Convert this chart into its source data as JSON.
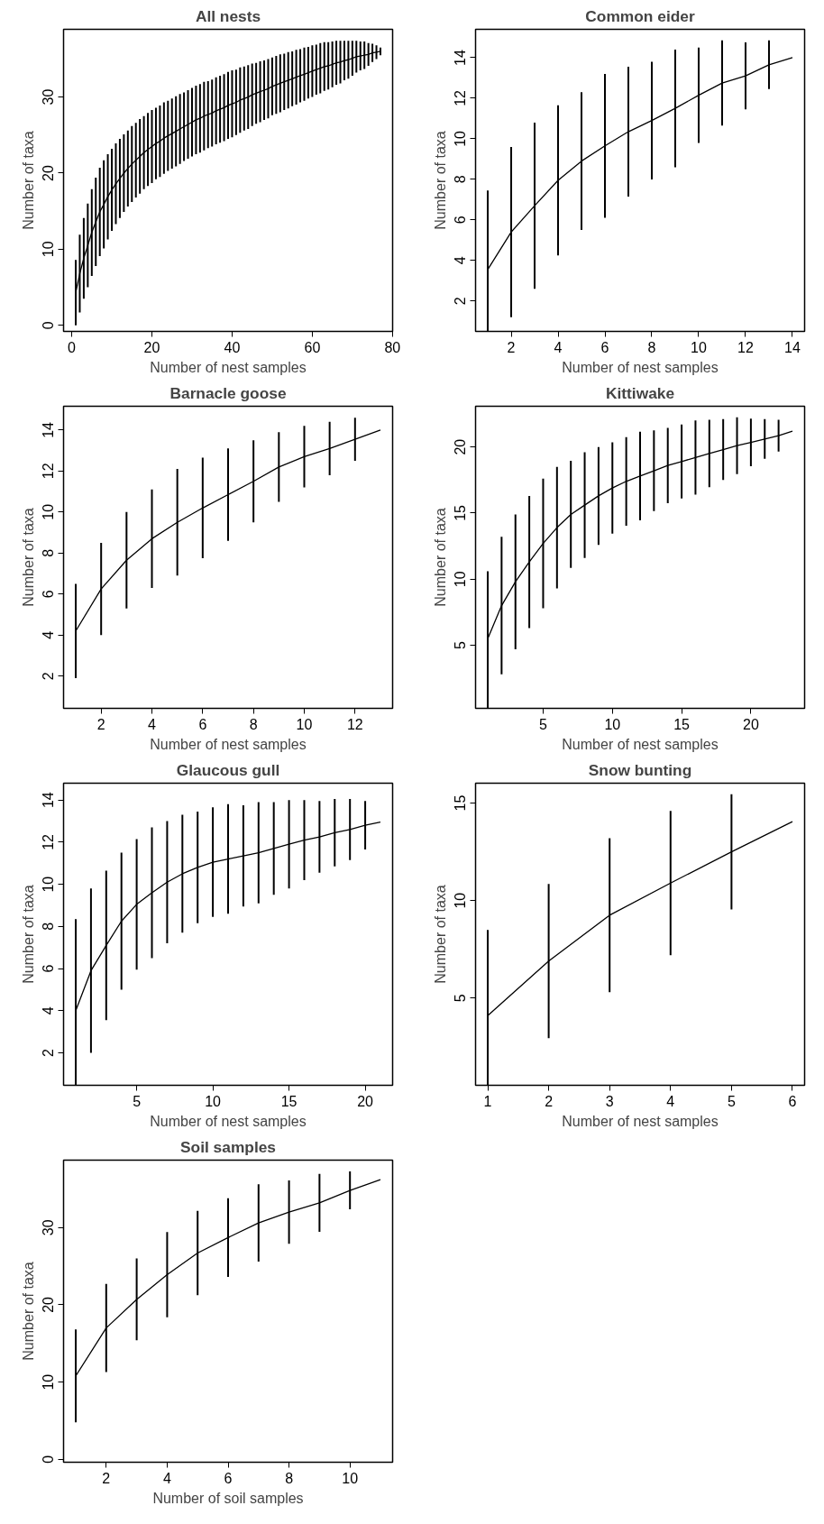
{
  "chart_data": [
    {
      "type": "line",
      "title": "All nests",
      "xlabel": "Number of nest samples",
      "ylabel": "Number of taxa",
      "xlim": [
        -2.04,
        80.04
      ],
      "ylim": [
        -0.8,
        38.9
      ],
      "xticks": [
        0,
        20,
        40,
        60,
        80
      ],
      "yticks": [
        0,
        10,
        20,
        30
      ],
      "grid": false,
      "marker": "none",
      "line_style": "solid",
      "x": [
        1,
        2,
        3,
        4,
        5,
        6,
        7,
        8,
        9,
        10,
        11,
        12,
        13,
        14,
        15,
        16,
        17,
        18,
        19,
        20,
        21,
        22,
        23,
        24,
        25,
        26,
        27,
        28,
        29,
        30,
        31,
        32,
        33,
        34,
        35,
        36,
        37,
        38,
        39,
        40,
        41,
        42,
        43,
        44,
        45,
        46,
        47,
        48,
        49,
        50,
        51,
        52,
        53,
        54,
        55,
        56,
        57,
        58,
        59,
        60,
        61,
        62,
        63,
        64,
        65,
        66,
        67,
        68,
        69,
        70,
        71,
        72,
        73,
        74,
        75,
        76,
        77
      ],
      "series": [
        {
          "color": "#000000",
          "values": [
            4.3,
            6.8,
            8.8,
            10.5,
            12.2,
            13.6,
            14.9,
            15.9,
            16.9,
            17.8,
            18.6,
            19.3,
            20.0,
            20.6,
            21.2,
            21.7,
            22.2,
            22.7,
            23.1,
            23.5,
            23.9,
            24.2,
            24.6,
            24.9,
            25.2,
            25.5,
            25.8,
            26.1,
            26.4,
            26.7,
            27.0,
            27.2,
            27.5,
            27.7,
            27.9,
            28.2,
            28.4,
            28.6,
            28.9,
            29.1,
            29.3,
            29.6,
            29.8,
            30.0,
            30.3,
            30.5,
            30.7,
            30.9,
            31.1,
            31.4,
            31.6,
            31.8,
            32.0,
            32.2,
            32.4,
            32.6,
            32.8,
            33.0,
            33.2,
            33.4,
            33.6,
            33.8,
            34.0,
            34.1,
            34.3,
            34.5,
            34.6,
            34.8,
            34.9,
            35.1,
            35.3,
            35.4,
            35.5,
            35.6,
            35.8,
            35.9,
            36.0
          ],
          "errors": [
            4.3,
            5.1,
            5.3,
            5.5,
            5.7,
            5.8,
            5.8,
            5.8,
            5.6,
            5.4,
            5.3,
            5.2,
            5.1,
            5.0,
            5.0,
            4.9,
            4.9,
            4.8,
            4.8,
            4.8,
            4.7,
            4.7,
            4.7,
            4.6,
            4.6,
            4.6,
            4.6,
            4.5,
            4.5,
            4.5,
            4.5,
            4.5,
            4.5,
            4.4,
            4.4,
            4.4,
            4.4,
            4.4,
            4.4,
            4.4,
            4.3,
            4.3,
            4.2,
            4.2,
            4.1,
            4.0,
            4.0,
            3.9,
            3.9,
            3.8,
            3.8,
            3.8,
            3.7,
            3.7,
            3.6,
            3.6,
            3.5,
            3.5,
            3.4,
            3.4,
            3.3,
            3.3,
            3.2,
            3.1,
            3.0,
            2.9,
            2.8,
            2.6,
            2.5,
            2.3,
            2.1,
            1.9,
            1.8,
            1.5,
            1.2,
            0.9,
            0.5
          ]
        }
      ]
    },
    {
      "type": "line",
      "title": "Common eider",
      "xlabel": "Number of nest samples",
      "ylabel": "Number of taxa",
      "xlim": [
        0.48,
        14.52
      ],
      "ylim": [
        0.5,
        15.4
      ],
      "xticks": [
        2,
        4,
        6,
        8,
        10,
        12,
        14
      ],
      "yticks": [
        2,
        4,
        6,
        8,
        10,
        12,
        14
      ],
      "grid": false,
      "marker": "none",
      "line_style": "solid",
      "x": [
        1,
        2,
        3,
        4,
        5,
        6,
        7,
        8,
        9,
        10,
        11,
        12,
        13,
        14
      ],
      "series": [
        {
          "color": "#000000",
          "values": [
            3.55,
            5.4,
            6.7,
            7.95,
            8.9,
            9.65,
            10.35,
            10.9,
            11.5,
            12.15,
            12.75,
            13.1,
            13.65,
            14.0
          ],
          "errors": [
            [
              0.5,
              7.45
            ],
            4.2,
            4.1,
            3.7,
            3.4,
            3.55,
            3.2,
            2.9,
            2.9,
            2.35,
            2.1,
            1.65,
            1.2,
            null
          ]
        }
      ]
    },
    {
      "type": "line",
      "title": "Barnacle goose",
      "xlabel": "Number of nest samples",
      "ylabel": "Number of taxa",
      "xlim": [
        0.52,
        13.48
      ],
      "ylim": [
        0.43,
        15.16
      ],
      "xticks": [
        2,
        4,
        6,
        8,
        10,
        12
      ],
      "yticks": [
        2,
        4,
        6,
        8,
        10,
        12,
        14
      ],
      "grid": false,
      "marker": "none",
      "line_style": "solid",
      "x": [
        1,
        2,
        3,
        4,
        5,
        6,
        7,
        8,
        9,
        10,
        11,
        12,
        13
      ],
      "series": [
        {
          "color": "#000000",
          "values": [
            4.2,
            6.25,
            7.65,
            8.7,
            9.5,
            10.2,
            10.85,
            11.5,
            12.2,
            12.7,
            13.1,
            13.55,
            14.0
          ],
          "errors": [
            2.3,
            2.25,
            2.35,
            2.4,
            2.6,
            2.45,
            2.25,
            2.0,
            1.7,
            1.5,
            1.3,
            1.05,
            null
          ]
        }
      ]
    },
    {
      "type": "line",
      "title": "Kittiwake",
      "xlabel": "Number of nest samples",
      "ylabel": "Number of taxa",
      "xlim": [
        0.12,
        23.88
      ],
      "ylim": [
        0.23,
        23.08
      ],
      "xticks": [
        5,
        10,
        15,
        20
      ],
      "yticks": [
        5,
        10,
        15,
        20
      ],
      "grid": false,
      "marker": "none",
      "line_style": "solid",
      "x": [
        1,
        2,
        3,
        4,
        5,
        6,
        7,
        8,
        9,
        10,
        11,
        12,
        13,
        14,
        15,
        16,
        17,
        18,
        19,
        20,
        21,
        22,
        23
      ],
      "series": [
        {
          "color": "#000000",
          "values": [
            5.5,
            8.0,
            9.8,
            11.3,
            12.7,
            13.9,
            14.9,
            15.6,
            16.3,
            16.9,
            17.4,
            17.8,
            18.2,
            18.6,
            18.9,
            19.2,
            19.5,
            19.8,
            20.1,
            20.35,
            20.6,
            20.85,
            21.2
          ],
          "errors": [
            [
              0.23,
              10.6
            ],
            5.2,
            5.1,
            5.0,
            4.9,
            4.6,
            4.05,
            4.0,
            3.7,
            3.45,
            3.35,
            3.35,
            3.05,
            2.85,
            2.8,
            2.8,
            2.55,
            2.3,
            2.15,
            1.8,
            1.5,
            1.2,
            null
          ]
        }
      ]
    },
    {
      "type": "line",
      "title": "Glaucous gull",
      "xlabel": "Number of nest samples",
      "ylabel": "Number of taxa",
      "xlim": [
        0.2,
        21.8
      ],
      "ylim": [
        0.46,
        14.8
      ],
      "xticks": [
        5,
        10,
        15,
        20
      ],
      "yticks": [
        2,
        4,
        6,
        8,
        10,
        12,
        14
      ],
      "grid": false,
      "marker": "none",
      "line_style": "solid",
      "x": [
        1,
        2,
        3,
        4,
        5,
        6,
        7,
        8,
        9,
        10,
        11,
        12,
        13,
        14,
        15,
        16,
        17,
        18,
        19,
        20,
        21
      ],
      "series": [
        {
          "color": "#000000",
          "values": [
            4.0,
            5.9,
            7.1,
            8.25,
            9.05,
            9.6,
            10.1,
            10.5,
            10.8,
            11.05,
            11.2,
            11.35,
            11.5,
            11.7,
            11.9,
            12.1,
            12.25,
            12.45,
            12.6,
            12.8,
            12.95
          ],
          "errors": [
            [
              0.46,
              8.35
            ],
            3.9,
            3.55,
            3.25,
            3.1,
            3.1,
            2.9,
            2.8,
            2.65,
            2.6,
            2.6,
            2.4,
            2.4,
            2.2,
            2.1,
            1.9,
            1.7,
            1.6,
            1.45,
            1.15,
            null
          ]
        }
      ]
    },
    {
      "type": "line",
      "title": "Snow bunting",
      "xlabel": "Number of nest samples",
      "ylabel": "Number of taxa",
      "xlim": [
        0.8,
        6.2
      ],
      "ylim": [
        0.53,
        16.02
      ],
      "xticks": [
        1,
        2,
        3,
        4,
        5,
        6
      ],
      "yticks": [
        5,
        10,
        15
      ],
      "grid": false,
      "marker": "none",
      "line_style": "solid",
      "x": [
        1,
        2,
        3,
        4,
        5,
        6
      ],
      "series": [
        {
          "color": "#000000",
          "values": [
            4.1,
            6.9,
            9.25,
            10.9,
            12.5,
            14.05
          ],
          "errors": [
            [
              0.53,
              8.5
            ],
            3.95,
            3.95,
            3.7,
            2.95,
            null
          ]
        }
      ]
    },
    {
      "type": "line",
      "title": "Soil samples",
      "xlabel": "Number of soil samples",
      "ylabel": "Number of taxa",
      "xlim": [
        0.6,
        11.4
      ],
      "ylim": [
        -0.37,
        38.72
      ],
      "xticks": [
        2,
        4,
        6,
        8,
        10
      ],
      "yticks": [
        0,
        10,
        20,
        30
      ],
      "grid": false,
      "marker": "none",
      "line_style": "solid",
      "x": [
        1,
        2,
        3,
        4,
        5,
        6,
        7,
        8,
        9,
        10,
        11
      ],
      "series": [
        {
          "color": "#000000",
          "values": [
            10.8,
            17.0,
            20.7,
            23.9,
            26.7,
            28.7,
            30.6,
            32.0,
            33.2,
            34.8,
            36.2
          ],
          "errors": [
            6.0,
            5.7,
            5.3,
            5.5,
            5.45,
            5.1,
            5.0,
            4.1,
            3.75,
            2.45,
            null
          ]
        }
      ]
    }
  ]
}
